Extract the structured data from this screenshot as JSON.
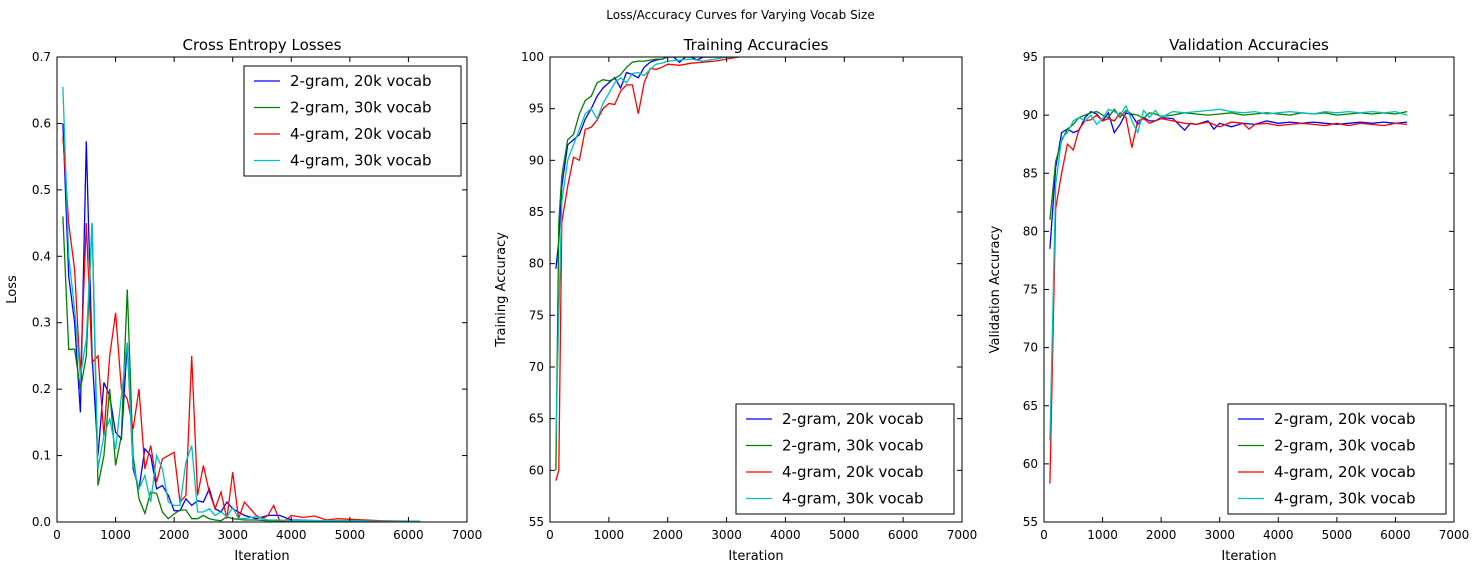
{
  "figure_title": "Loss/Accuracy Curves for Varying Vocab Size",
  "chart_data": [
    {
      "type": "line",
      "title": "Cross Entropy Losses",
      "xlabel": "Iteration",
      "ylabel": "Loss",
      "xlim": [
        0,
        7000
      ],
      "ylim": [
        0,
        0.7
      ],
      "xticks": [
        0,
        1000,
        2000,
        3000,
        4000,
        5000,
        6000,
        7000
      ],
      "yticks": [
        0.0,
        0.1,
        0.2,
        0.3,
        0.4,
        0.5,
        0.6,
        0.7
      ],
      "ytick_labels": [
        "0.0",
        "0.1",
        "0.2",
        "0.3",
        "0.4",
        "0.5",
        "0.6",
        "0.7"
      ],
      "legend_position": "top-right",
      "series": [
        {
          "name": "2-gram, 20k vocab",
          "color": "#0000ff",
          "x": [
            100,
            200,
            300,
            400,
            500,
            600,
            700,
            800,
            900,
            1000,
            1100,
            1200,
            1300,
            1400,
            1500,
            1600,
            1700,
            1800,
            1900,
            2000,
            2100,
            2200,
            2300,
            2400,
            2500,
            2600,
            2700,
            2800,
            2900,
            3000,
            3200,
            3400,
            3600,
            3800,
            4000,
            4500,
            5000,
            5500,
            6200
          ],
          "y": [
            0.6,
            0.37,
            0.3,
            0.165,
            0.573,
            0.25,
            0.1,
            0.21,
            0.19,
            0.135,
            0.125,
            0.27,
            0.08,
            0.05,
            0.11,
            0.1,
            0.05,
            0.055,
            0.04,
            0.017,
            0.017,
            0.035,
            0.025,
            0.032,
            0.03,
            0.05,
            0.02,
            0.015,
            0.03,
            0.02,
            0.01,
            0.005,
            0.01,
            0.01,
            0.003,
            0.002,
            0.002,
            0.001,
            0.001
          ]
        },
        {
          "name": "2-gram, 30k vocab",
          "color": "#008000",
          "x": [
            100,
            200,
            300,
            400,
            500,
            600,
            700,
            800,
            900,
            1000,
            1100,
            1200,
            1300,
            1400,
            1500,
            1600,
            1700,
            1800,
            1900,
            2000,
            2100,
            2200,
            2300,
            2400,
            2500,
            2600,
            2700,
            2800,
            2900,
            3000,
            3200,
            3400,
            3600,
            3800,
            4000,
            4500,
            5000,
            5500,
            6200
          ],
          "y": [
            0.46,
            0.26,
            0.26,
            0.2,
            0.25,
            0.45,
            0.055,
            0.1,
            0.2,
            0.085,
            0.13,
            0.35,
            0.1,
            0.035,
            0.013,
            0.045,
            0.043,
            0.015,
            0.005,
            0.012,
            0.018,
            0.018,
            0.005,
            0.005,
            0.01,
            0.005,
            0.003,
            0.002,
            0.008,
            0.005,
            0.003,
            0.003,
            0.002,
            0.002,
            0.002,
            0.001,
            0.001,
            0.001,
            0.001
          ]
        },
        {
          "name": "4-gram, 20k vocab",
          "color": "#ff0000",
          "x": [
            100,
            200,
            300,
            400,
            500,
            600,
            700,
            800,
            900,
            1000,
            1100,
            1200,
            1300,
            1400,
            1500,
            1600,
            1700,
            1800,
            1900,
            2000,
            2100,
            2200,
            2300,
            2400,
            2500,
            2600,
            2700,
            2800,
            2900,
            3000,
            3100,
            3200,
            3300,
            3400,
            3500,
            3600,
            3700,
            3800,
            3900,
            4000,
            4200,
            4400,
            4600,
            4800,
            5000,
            5500,
            6200
          ],
          "y": [
            0.58,
            0.45,
            0.38,
            0.22,
            0.45,
            0.24,
            0.25,
            0.13,
            0.25,
            0.315,
            0.2,
            0.185,
            0.14,
            0.2,
            0.08,
            0.115,
            0.06,
            0.095,
            0.1,
            0.105,
            0.03,
            0.04,
            0.25,
            0.04,
            0.085,
            0.045,
            0.02,
            0.045,
            0.005,
            0.075,
            0.005,
            0.03,
            0.02,
            0.01,
            0.005,
            0.01,
            0.025,
            0.002,
            0.002,
            0.01,
            0.007,
            0.009,
            0.003,
            0.005,
            0.004,
            0.002,
            0.001
          ]
        },
        {
          "name": "4-gram, 30k vocab",
          "color": "#00bfbf",
          "x": [
            100,
            200,
            300,
            400,
            500,
            600,
            700,
            800,
            900,
            1000,
            1100,
            1200,
            1300,
            1400,
            1500,
            1600,
            1700,
            1800,
            1900,
            2000,
            2100,
            2200,
            2300,
            2400,
            2500,
            2600,
            2700,
            2800,
            2900,
            3000,
            3100,
            3200,
            3400,
            3600,
            3800,
            4000,
            4500,
            5000,
            5500,
            6200
          ],
          "y": [
            0.655,
            0.4,
            0.32,
            0.22,
            0.275,
            0.45,
            0.08,
            0.13,
            0.155,
            0.11,
            0.19,
            0.27,
            0.085,
            0.05,
            0.07,
            0.03,
            0.1,
            0.08,
            0.03,
            0.025,
            0.025,
            0.09,
            0.115,
            0.015,
            0.015,
            0.02,
            0.01,
            0.015,
            0.008,
            0.022,
            0.005,
            0.005,
            0.008,
            0.003,
            0.003,
            0.002,
            0.002,
            0.002,
            0.001,
            0.001
          ]
        }
      ]
    },
    {
      "type": "line",
      "title": "Training Accuracies",
      "xlabel": "Iteration",
      "ylabel": "Training Accuracy",
      "xlim": [
        0,
        7000
      ],
      "ylim": [
        55,
        100
      ],
      "xticks": [
        0,
        1000,
        2000,
        3000,
        4000,
        5000,
        6000,
        7000
      ],
      "yticks": [
        55,
        60,
        65,
        70,
        75,
        80,
        85,
        90,
        95,
        100
      ],
      "ytick_labels": [
        "55",
        "60",
        "65",
        "70",
        "75",
        "80",
        "85",
        "90",
        "95",
        "100"
      ],
      "legend_position": "bottom-right",
      "series": [
        {
          "name": "2-gram, 20k vocab",
          "color": "#0000ff",
          "x": [
            100,
            150,
            200,
            300,
            400,
            500,
            600,
            700,
            800,
            900,
            1000,
            1100,
            1200,
            1300,
            1400,
            1500,
            1600,
            1700,
            1800,
            1900,
            2000,
            2100,
            2200,
            2300,
            2400,
            2500,
            2600,
            2800,
            3000,
            3200
          ],
          "y": [
            79.5,
            82.2,
            87.5,
            91.5,
            92,
            92.5,
            94,
            95,
            96.2,
            97,
            97.5,
            98,
            97,
            98.5,
            98.3,
            98,
            99,
            99.5,
            99.7,
            99.8,
            100,
            100,
            99.5,
            100,
            100,
            99.7,
            100,
            100,
            100,
            100
          ]
        },
        {
          "name": "2-gram, 30k vocab",
          "color": "#008000",
          "x": [
            100,
            150,
            200,
            300,
            400,
            500,
            600,
            700,
            800,
            900,
            1000,
            1100,
            1200,
            1300,
            1400,
            1500,
            1600,
            1700,
            1800,
            1900,
            2000,
            2200,
            2400,
            2600,
            2800,
            3000,
            3200
          ],
          "y": [
            60,
            84,
            88.5,
            92,
            92.5,
            94.5,
            95.8,
            96.2,
            97.5,
            97.8,
            97.7,
            97.9,
            98.3,
            99,
            99.5,
            99.6,
            99.6,
            99.7,
            99.8,
            99.8,
            100,
            100,
            100,
            100,
            100,
            100,
            100
          ]
        },
        {
          "name": "4-gram, 20k vocab",
          "color": "#ff0000",
          "x": [
            100,
            150,
            200,
            300,
            400,
            500,
            600,
            700,
            800,
            900,
            1000,
            1100,
            1200,
            1300,
            1400,
            1500,
            1600,
            1700,
            1800,
            1900,
            2000,
            2200,
            2400,
            2600,
            2800,
            3000,
            3200
          ],
          "y": [
            59,
            60,
            84,
            87.5,
            90.3,
            90,
            93,
            93.2,
            93.9,
            95,
            95.5,
            95.4,
            96.7,
            97.3,
            97.3,
            94.5,
            97.5,
            98.9,
            98.8,
            99,
            99.3,
            99.2,
            99.4,
            99.5,
            99.6,
            99.8,
            100
          ]
        },
        {
          "name": "4-gram, 30k vocab",
          "color": "#00bfbf",
          "x": [
            100,
            150,
            200,
            300,
            400,
            500,
            600,
            700,
            800,
            900,
            1000,
            1100,
            1200,
            1300,
            1400,
            1500,
            1600,
            1700,
            1800,
            1900,
            2000,
            2200,
            2400,
            2600,
            2800,
            3000,
            3200
          ],
          "y": [
            63,
            75,
            86,
            90,
            91.5,
            93,
            94.5,
            95,
            94,
            95.5,
            96.5,
            97.5,
            98,
            97.5,
            98.4,
            98.5,
            98.2,
            98.8,
            99.3,
            99.4,
            99.6,
            99.7,
            99.8,
            99.6,
            99.8,
            100,
            100
          ]
        }
      ]
    },
    {
      "type": "line",
      "title": "Validation Accuracies",
      "xlabel": "Iteration",
      "ylabel": "Validation Accuracy",
      "xlim": [
        0,
        7000
      ],
      "ylim": [
        55,
        95
      ],
      "xticks": [
        0,
        1000,
        2000,
        3000,
        4000,
        5000,
        6000,
        7000
      ],
      "yticks": [
        55,
        60,
        65,
        70,
        75,
        80,
        85,
        90,
        95
      ],
      "ytick_labels": [
        "55",
        "60",
        "65",
        "70",
        "75",
        "80",
        "85",
        "90",
        "95"
      ],
      "legend_position": "bottom-right",
      "series": [
        {
          "name": "2-gram, 20k vocab",
          "color": "#0000ff",
          "x": [
            100,
            200,
            300,
            400,
            500,
            600,
            700,
            800,
            900,
            1000,
            1100,
            1200,
            1300,
            1400,
            1500,
            1600,
            1700,
            1800,
            1900,
            2000,
            2200,
            2400,
            2500,
            2600,
            2800,
            2900,
            3000,
            3200,
            3400,
            3600,
            3800,
            4000,
            4200,
            4400,
            4600,
            4800,
            5000,
            5200,
            5400,
            5600,
            5800,
            6000,
            6200
          ],
          "y": [
            78.5,
            85.5,
            88.5,
            88.8,
            88.5,
            88.7,
            89.8,
            90.3,
            90.1,
            89.5,
            90.2,
            88.5,
            89.2,
            90.2,
            90,
            89.2,
            89.8,
            89.5,
            89.5,
            89.8,
            89.7,
            88.7,
            89.3,
            89.2,
            89.5,
            88.8,
            89.3,
            89,
            89.3,
            89.2,
            89.5,
            89.3,
            89.4,
            89.3,
            89.4,
            89.3,
            89.2,
            89.3,
            89.4,
            89.3,
            89.4,
            89.3,
            89.4
          ]
        },
        {
          "name": "2-gram, 30k vocab",
          "color": "#008000",
          "x": [
            100,
            200,
            300,
            400,
            500,
            600,
            700,
            800,
            900,
            1000,
            1100,
            1200,
            1300,
            1400,
            1500,
            1600,
            1700,
            1800,
            1900,
            2000,
            2200,
            2400,
            2600,
            2800,
            3000,
            3200,
            3400,
            3600,
            3800,
            4000,
            4200,
            4400,
            4600,
            4800,
            5000,
            5200,
            5400,
            5600,
            5800,
            6000,
            6200
          ],
          "y": [
            81,
            86,
            87.8,
            88.8,
            89.2,
            89.8,
            90,
            90.2,
            90.3,
            90,
            89.8,
            90.5,
            89.8,
            90.4,
            90.1,
            90,
            89.7,
            90.2,
            90.1,
            89.9,
            90,
            90.2,
            90.1,
            90,
            90.1,
            90.2,
            90,
            90.1,
            90.2,
            90.1,
            90,
            90.2,
            90.1,
            90.2,
            90,
            90.1,
            90.2,
            90.1,
            90.2,
            90.1,
            90.3
          ]
        },
        {
          "name": "4-gram, 20k vocab",
          "color": "#ff0000",
          "x": [
            100,
            200,
            300,
            400,
            500,
            600,
            700,
            800,
            900,
            1000,
            1100,
            1200,
            1300,
            1400,
            1500,
            1600,
            1700,
            1800,
            1900,
            2000,
            2200,
            2400,
            2600,
            2800,
            3000,
            3200,
            3400,
            3500,
            3600,
            3800,
            4000,
            4200,
            4400,
            4600,
            4800,
            5000,
            5200,
            5400,
            5600,
            5800,
            6000,
            6200
          ],
          "y": [
            58.3,
            82,
            85,
            87.5,
            87,
            88.8,
            89.5,
            89.6,
            90,
            89.5,
            89.7,
            89.5,
            90.2,
            89.8,
            87.2,
            89.5,
            89.7,
            89.3,
            89.5,
            89.7,
            89.5,
            89.3,
            89.2,
            89.4,
            89,
            89.4,
            89.3,
            88.8,
            89.2,
            89.3,
            89.1,
            89.2,
            89.3,
            89.2,
            89.1,
            89.3,
            89.1,
            89.3,
            89.2,
            89.1,
            89.3,
            89.2
          ]
        },
        {
          "name": "4-gram, 30k vocab",
          "color": "#00bfbf",
          "x": [
            100,
            200,
            300,
            400,
            500,
            600,
            700,
            800,
            900,
            1000,
            1100,
            1200,
            1300,
            1400,
            1500,
            1600,
            1700,
            1800,
            1900,
            2000,
            2200,
            2400,
            2600,
            2800,
            3000,
            3200,
            3400,
            3600,
            3800,
            4000,
            4200,
            4400,
            4600,
            4800,
            5000,
            5200,
            5400,
            5600,
            5800,
            6000,
            6200
          ],
          "y": [
            62,
            84,
            88,
            88.5,
            89.5,
            89.8,
            89.5,
            90,
            89.2,
            89.7,
            90.5,
            90.3,
            90,
            90.8,
            89.5,
            88.5,
            90.4,
            89.8,
            90.4,
            89.8,
            90.3,
            90.2,
            90.3,
            90.4,
            90.5,
            90.3,
            90.2,
            90.3,
            90.1,
            90.2,
            90.3,
            90.2,
            90.1,
            90.3,
            90.2,
            90.3,
            90.2,
            90.3,
            90.2,
            90.3,
            90
          ]
        }
      ]
    }
  ]
}
